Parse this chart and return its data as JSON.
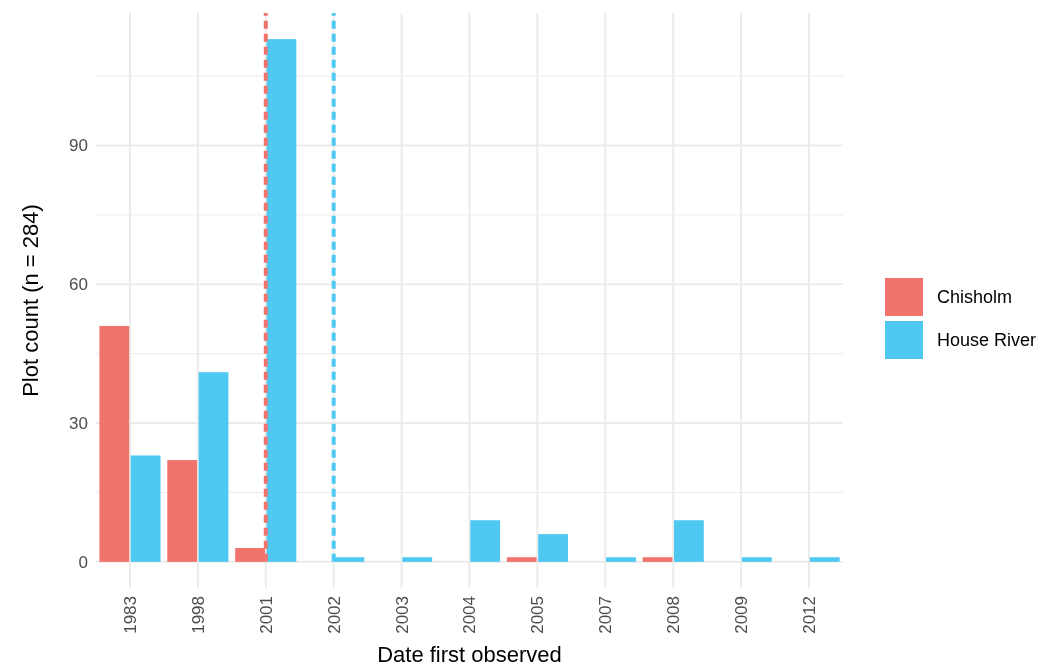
{
  "chart_data": {
    "type": "bar",
    "xlabel": "Date first observed",
    "ylabel": "Plot count (n = 284)",
    "categories": [
      "1983",
      "1998",
      "2001",
      "2002",
      "2003",
      "2004",
      "2005",
      "2007",
      "2008",
      "2009",
      "2012"
    ],
    "series": [
      {
        "name": "Chisholm",
        "color": "#f0736c",
        "values": [
          51,
          22,
          3,
          null,
          null,
          null,
          1,
          null,
          1,
          null,
          null
        ]
      },
      {
        "name": "House River",
        "color": "#4fc8f2",
        "values": [
          23,
          41,
          113,
          1,
          1,
          9,
          6,
          1,
          9,
          1,
          1
        ]
      }
    ],
    "ylim": [
      -5.65,
      118.65
    ],
    "yticks": [
      0,
      {
        "value": 15,
        "label": null
      },
      30,
      {
        "value": 45,
        "label": null
      },
      60,
      {
        "value": 75,
        "label": null
      },
      90,
      {
        "value": 105,
        "label": null
      }
    ],
    "ref_lines": [
      {
        "axis": "x",
        "value": "2001",
        "color": "#f0736c",
        "line_style": "dashed"
      },
      {
        "axis": "x",
        "value": "2002",
        "color": "#4fc8f2",
        "line_style": "dashed"
      }
    ],
    "grid": true,
    "legend": "right"
  }
}
